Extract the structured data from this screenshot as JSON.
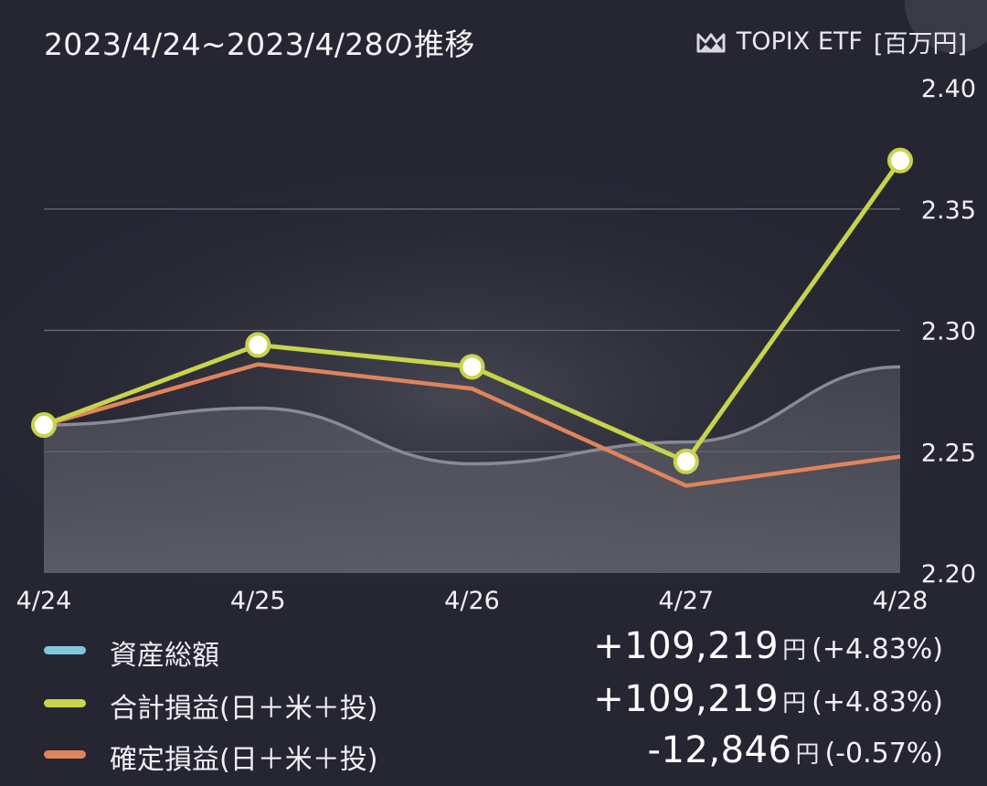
{
  "header": {
    "title": "2023/4/24~2023/4/28の推移",
    "benchmark_label": "TOPIX ETF",
    "unit_label": "[百万円]",
    "benchmark_icon": "mountain-chart-icon"
  },
  "chart_data": {
    "type": "line",
    "categories": [
      "4/24",
      "4/25",
      "4/26",
      "4/27",
      "4/28"
    ],
    "ylim": [
      2.2,
      2.4
    ],
    "yticks": [
      "2.40",
      "2.35",
      "2.30",
      "2.25",
      "2.20"
    ],
    "ytick_values": [
      2.4,
      2.35,
      2.3,
      2.25,
      2.2
    ],
    "grid": true,
    "series": [
      {
        "name": "TOPIX ETF",
        "style": "area",
        "color": "#8a8a94",
        "values": [
          2.261,
          2.268,
          2.245,
          2.254,
          2.285
        ]
      },
      {
        "name": "確定損益(日＋米＋投)",
        "style": "line",
        "color": "#e0845c",
        "values": [
          2.261,
          2.286,
          2.276,
          2.236,
          2.248
        ]
      },
      {
        "name": "合計損益(日＋米＋投)",
        "style": "line-markers",
        "color": "#c8d44a",
        "values": [
          2.261,
          2.294,
          2.285,
          2.246,
          2.37
        ]
      }
    ]
  },
  "legend": [
    {
      "label": "資産総額",
      "color": "#7fc8dc",
      "amount": "+109,219",
      "unit": "円",
      "pct": "(+4.83%)"
    },
    {
      "label": "合計損益(日＋米＋投)",
      "color": "#c8d44a",
      "amount": "+109,219",
      "unit": "円",
      "pct": "(+4.83%)"
    },
    {
      "label": "確定損益(日＋米＋投)",
      "color": "#e0845c",
      "amount": "-12,846",
      "unit": "円",
      "pct": "(-0.57%)"
    }
  ]
}
